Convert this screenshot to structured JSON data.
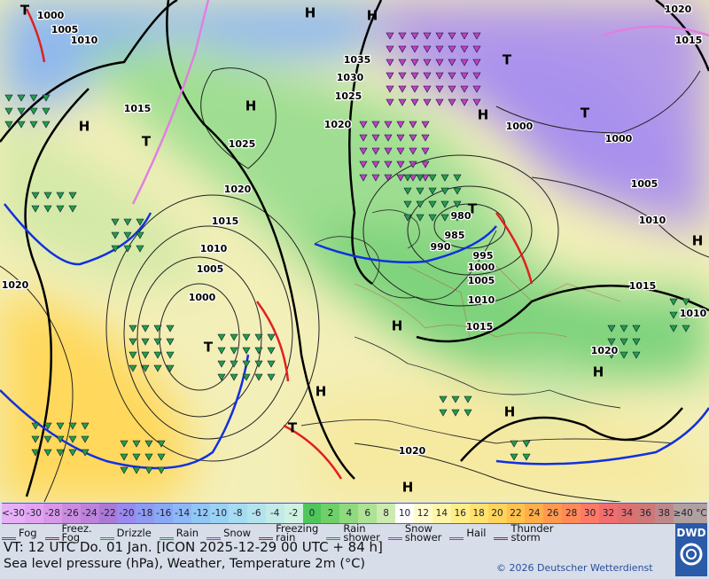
{
  "map": {
    "pressure_labels": [
      "H",
      "H",
      "H",
      "H",
      "H",
      "H",
      "H",
      "H",
      "H",
      "H",
      "H",
      "T",
      "T",
      "T",
      "T",
      "T",
      "T",
      "T",
      "1000",
      "1005",
      "1010",
      "1015",
      "1025",
      "1020",
      "1015",
      "1010",
      "1005",
      "1000",
      "1035",
      "1030",
      "1025",
      "1020",
      "1000",
      "1000",
      "1005",
      "1010",
      "1020",
      "1015",
      "1015",
      "1010",
      "1020",
      "1015",
      "1010",
      "1005",
      "1000",
      "995",
      "990",
      "985",
      "980",
      "1020",
      "1020"
    ]
  },
  "temperature_scale": {
    "labels": [
      "<-30",
      "-30",
      "-28",
      "-26",
      "-24",
      "-22",
      "-20",
      "-18",
      "-16",
      "-14",
      "-12",
      "-10",
      "-8",
      "-6",
      "-4",
      "-2",
      "0",
      "2",
      "4",
      "6",
      "8",
      "10",
      "12",
      "14",
      "16",
      "18",
      "20",
      "22",
      "24",
      "26",
      "28",
      "30",
      "32",
      "34",
      "36",
      "38",
      "≥40 °C"
    ],
    "colors": [
      "#e6b0f6",
      "#e2a4f2",
      "#d898ea",
      "#cb8ce0",
      "#bd82da",
      "#aa7ad6",
      "#9a8af0",
      "#8f9af2",
      "#8aa8f5",
      "#8db8f5",
      "#92c6f5",
      "#9ad2f3",
      "#a5dcf0",
      "#b3e4ee",
      "#c2ebe8",
      "#cff1e2",
      "#4fc65a",
      "#6fd06a",
      "#8fda7e",
      "#aee294",
      "#cdeab0",
      "#ffffff",
      "#fffbcc",
      "#fff5a8",
      "#ffee88",
      "#ffe270",
      "#ffd45a",
      "#ffc24c",
      "#ffae48",
      "#ff9a4c",
      "#ff8a58",
      "#ff7a66",
      "#f06e6e",
      "#e07070",
      "#cf7878",
      "#bf8888",
      "#b0a0a0"
    ]
  },
  "weather_legend": [
    {
      "lines": [
        "Fog"
      ]
    },
    {
      "lines": [
        "Freez.",
        "Fog"
      ]
    },
    {
      "lines": [
        "Drizzle"
      ]
    },
    {
      "lines": [
        "Rain"
      ]
    },
    {
      "lines": [
        "Snow"
      ]
    },
    {
      "lines": [
        "Freezing",
        "rain"
      ]
    },
    {
      "lines": [
        "Rain",
        "shower"
      ]
    },
    {
      "lines": [
        "Snow",
        "shower"
      ]
    },
    {
      "lines": [
        "Hail"
      ]
    },
    {
      "lines": [
        "Thunder",
        "storm"
      ]
    }
  ],
  "footer": {
    "valid_time": "VT: 12 UTC Do.  01 Jan. [ICON 2025-12-29  00 UTC + 84 h]",
    "description": "Sea level pressure (hPa), Weather, Temperature 2m (°C)",
    "copyright": "© 2026 Deutscher Wetterdienst",
    "logo": "DWD"
  }
}
